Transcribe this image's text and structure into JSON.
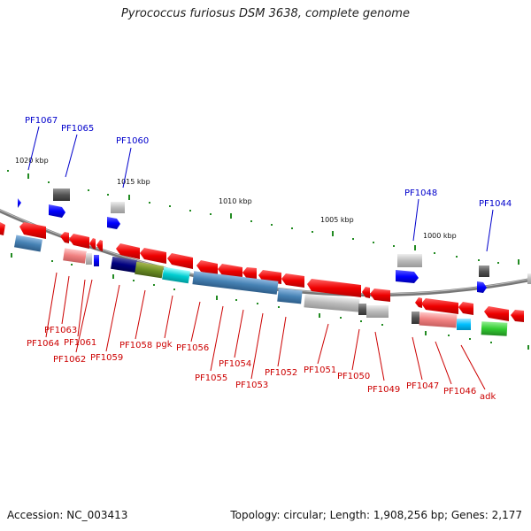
{
  "title": "Pyrococcus furiosus DSM 3638, complete genome",
  "footer": {
    "accession": "Accession: NC_003413",
    "info": "Topology: circular; Length: 1,908,256 bp; Genes: 2,177"
  },
  "scale_labels": [
    "1020 kbp",
    "1015 kbp",
    "1010 kbp",
    "1005 kbp",
    "1000 kbp"
  ],
  "top_labels": [
    "PF1067",
    "PF1065",
    "PF1060",
    "PF1048",
    "PF1044"
  ],
  "bottom_labels": [
    "PF1063",
    "PF1064",
    "PF1061",
    "PF1062",
    "PF1059",
    "PF1058",
    "pgk",
    "PF1056",
    "PF1055",
    "PF1054",
    "PF1053",
    "PF1052",
    "PF1051",
    "PF1050",
    "PF1049",
    "PF1047",
    "PF1046",
    "adk"
  ],
  "colors": {
    "forward_label": "#0000cc",
    "reverse_label": "#cc0000",
    "backbone": "#888888",
    "tick": "#228b22",
    "forward_gene": "#0000ff",
    "reverse_gene": "#ff0000"
  }
}
